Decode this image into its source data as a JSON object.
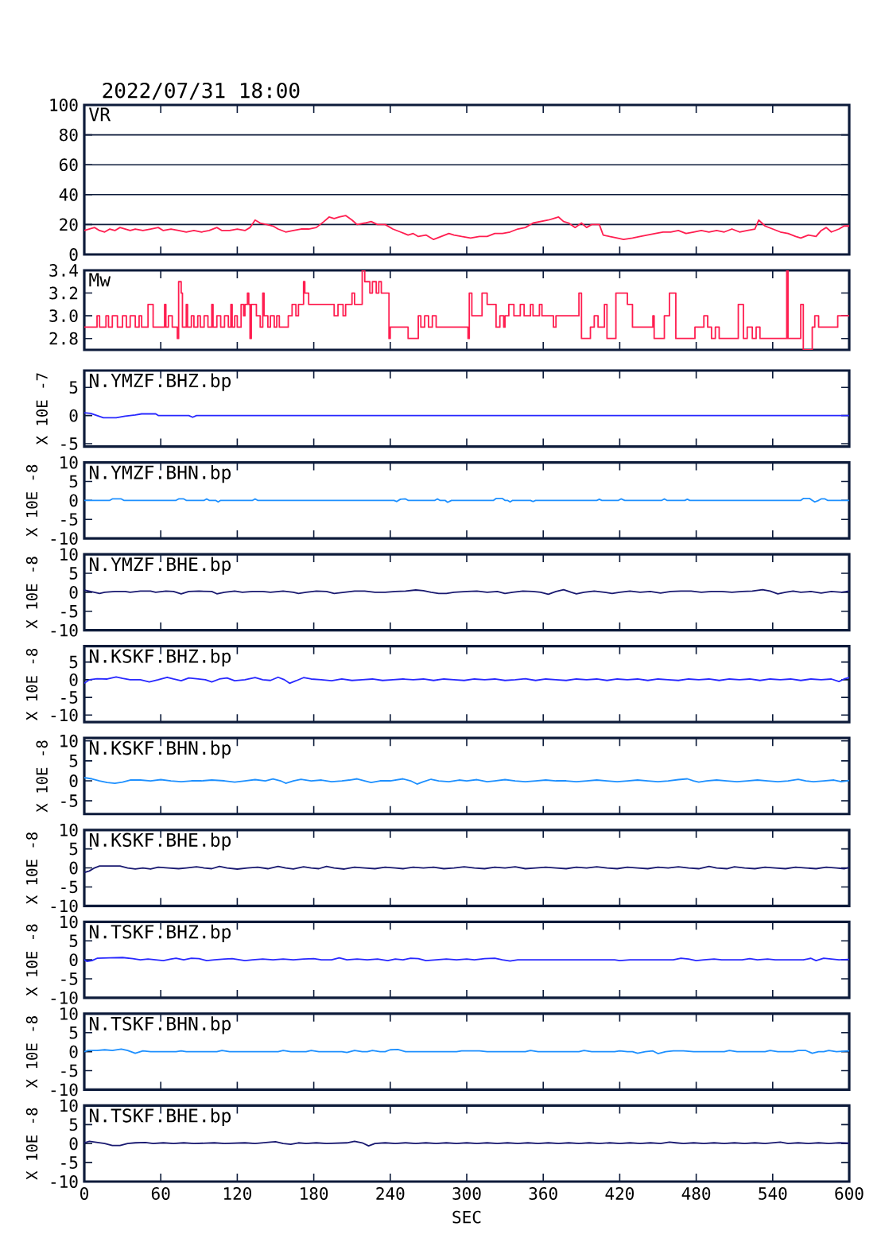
{
  "chart_data": [
    {
      "type": "line",
      "title": "VR",
      "annotations": [
        "2022/07/31 18:00"
      ],
      "color": "#ff1e50",
      "xlim": [
        0,
        600
      ],
      "xticks": [
        0,
        60,
        120,
        180,
        240,
        300,
        360,
        420,
        480,
        540,
        600
      ],
      "ylim": [
        0,
        100
      ],
      "yticks": [
        0,
        20,
        40,
        60,
        80,
        100
      ],
      "grid": "y",
      "tick_labels": "y",
      "x": [
        0,
        4,
        8,
        12,
        16,
        20,
        24,
        28,
        32,
        36,
        40,
        46,
        52,
        58,
        62,
        68,
        74,
        80,
        86,
        92,
        98,
        104,
        108,
        114,
        120,
        126,
        130,
        134,
        138,
        143,
        148,
        152,
        158,
        164,
        170,
        176,
        182,
        188,
        192,
        196,
        200,
        205,
        210,
        214,
        220,
        225,
        230,
        236,
        242,
        248,
        254,
        258,
        262,
        268,
        274,
        280,
        286,
        290,
        296,
        303,
        310,
        316,
        322,
        328,
        334,
        340,
        346,
        352,
        358,
        364,
        368,
        372,
        376,
        380,
        385,
        390,
        394,
        398,
        404,
        407,
        412,
        418,
        423,
        430,
        436,
        442,
        448,
        454,
        460,
        466,
        472,
        478,
        484,
        490,
        496,
        502,
        508,
        514,
        520,
        526,
        529,
        534,
        540,
        546,
        552,
        558,
        562,
        568,
        574,
        578,
        582,
        586,
        592,
        596,
        600
      ],
      "values": [
        16,
        17,
        18,
        16,
        15,
        17,
        16,
        18,
        17,
        16,
        17,
        16,
        17,
        18,
        16,
        17,
        16,
        15,
        16,
        15,
        16,
        18,
        16,
        16,
        17,
        16,
        18,
        23,
        21,
        20,
        19,
        17,
        15,
        16,
        17,
        17,
        18,
        22,
        25,
        24,
        25,
        26,
        23,
        20,
        21,
        22,
        20,
        20,
        17,
        15,
        13,
        14,
        12,
        13,
        10,
        12,
        14,
        13,
        12,
        11,
        12,
        12,
        14,
        14,
        15,
        17,
        18,
        21,
        22,
        23,
        24,
        25,
        22,
        21,
        18,
        21,
        18,
        20,
        20,
        13,
        12,
        11,
        10,
        11,
        12,
        13,
        14,
        15,
        15,
        16,
        14,
        15,
        16,
        15,
        16,
        15,
        17,
        15,
        16,
        17,
        23,
        19,
        17,
        15,
        14,
        12,
        11,
        13,
        12,
        16,
        18,
        15,
        17,
        19,
        19
      ]
    },
    {
      "type": "step",
      "title": "Mw",
      "color": "#ff1e50",
      "xlim": [
        0,
        600
      ],
      "xticks": [
        0,
        60,
        120,
        180,
        240,
        300,
        360,
        420,
        480,
        540,
        600
      ],
      "ylim": [
        2.7,
        3.4
      ],
      "yticks": [
        2.8,
        {
          "value": 3,
          "label": "3.0"
        },
        3.2,
        3.4
      ],
      "tick_labels": "y",
      "x": [
        0,
        10,
        12,
        17,
        19,
        22,
        26,
        30,
        33,
        36,
        40,
        43,
        45,
        50,
        54,
        63,
        64,
        66,
        69,
        73,
        74,
        76,
        77,
        80,
        81,
        84,
        86,
        89,
        91,
        94,
        97,
        100,
        101,
        104,
        107,
        110,
        113,
        115,
        116,
        118,
        120,
        123,
        125,
        126,
        128,
        129,
        130,
        131,
        135,
        138,
        140,
        141,
        144,
        146,
        149,
        151,
        153,
        160,
        163,
        166,
        168,
        172,
        173,
        176,
        196,
        199,
        203,
        205,
        210,
        212,
        218,
        220,
        224,
        226,
        229,
        231,
        233,
        239,
        240,
        254,
        262,
        264,
        267,
        270,
        273,
        276,
        301,
        302,
        304,
        312,
        316,
        323,
        326,
        329,
        330,
        333,
        337,
        342,
        345,
        350,
        352,
        357,
        359,
        368,
        370,
        388,
        390,
        397,
        400,
        403,
        408,
        410,
        417,
        426,
        430,
        446,
        447,
        455,
        459,
        464,
        479,
        486,
        489,
        492,
        495,
        498,
        513,
        517,
        520,
        524,
        527,
        530,
        551,
        552,
        562,
        564,
        571,
        573,
        576,
        591,
        600
      ],
      "values": [
        2.9,
        3.0,
        2.9,
        3.0,
        2.9,
        3.0,
        2.9,
        3.0,
        2.9,
        3.0,
        2.9,
        3.0,
        2.9,
        3.1,
        2.9,
        3.1,
        2.9,
        3.0,
        2.9,
        2.8,
        3.3,
        3.2,
        2.9,
        3.1,
        2.9,
        3.0,
        2.9,
        3.0,
        2.9,
        3.0,
        2.9,
        3.1,
        2.9,
        3.0,
        2.9,
        3.0,
        2.9,
        3.1,
        2.9,
        3.0,
        2.9,
        3.1,
        3.0,
        3.1,
        3.2,
        3.1,
        2.8,
        3.1,
        3.0,
        2.9,
        3.2,
        3.0,
        2.9,
        3.0,
        2.9,
        3.0,
        2.9,
        3.0,
        3.1,
        3.0,
        3.1,
        3.3,
        3.2,
        3.1,
        3.0,
        3.1,
        3.0,
        3.1,
        3.2,
        3.1,
        3.4,
        3.3,
        3.2,
        3.3,
        3.2,
        3.3,
        3.2,
        2.8,
        2.9,
        2.8,
        3.0,
        2.9,
        3.0,
        2.9,
        3.0,
        2.9,
        2.8,
        3.2,
        3.0,
        3.2,
        3.1,
        2.9,
        3.0,
        2.9,
        3.0,
        3.1,
        3.0,
        3.1,
        3.0,
        3.1,
        3.0,
        3.1,
        3.0,
        2.9,
        3.0,
        3.2,
        2.8,
        2.9,
        3.0,
        2.9,
        3.1,
        2.8,
        3.2,
        3.1,
        2.9,
        3.0,
        2.8,
        3.0,
        3.2,
        2.8,
        2.9,
        3.0,
        2.9,
        2.8,
        2.9,
        2.8,
        3.1,
        2.8,
        2.9,
        2.8,
        2.9,
        2.8,
        3.4,
        2.8,
        3.1,
        2.7,
        2.9,
        3.0,
        2.9,
        3.0,
        3.0
      ]
    },
    {
      "type": "line",
      "title": "N.YMZF.BHZ.bp",
      "ylabel": "X 10E -7",
      "color": "#2828ff",
      "xlim": [
        0,
        600
      ],
      "xticks": [
        0,
        60,
        120,
        180,
        240,
        300,
        360,
        420,
        480,
        540,
        600
      ],
      "ylim": [
        -5.5,
        8
      ],
      "yticks": [
        -5,
        0,
        5
      ],
      "tick_labels": "y",
      "x": [
        0,
        5,
        10,
        15,
        25,
        32,
        40,
        45,
        56,
        58,
        82,
        85,
        88,
        600
      ],
      "values": [
        0.5,
        0.4,
        0,
        -0.4,
        -0.4,
        -0.1,
        0.1,
        0.3,
        0.3,
        0,
        0,
        -0.3,
        0,
        0
      ]
    },
    {
      "type": "line",
      "title": "N.YMZF.BHN.bp",
      "ylabel": "X 10E -8",
      "color": "#1e90ff",
      "xlim": [
        0,
        600
      ],
      "xticks": [
        0,
        60,
        120,
        180,
        240,
        300,
        360,
        420,
        480,
        540,
        600
      ],
      "ylim": [
        -10,
        10
      ],
      "yticks": [
        -10,
        -5,
        0,
        5,
        10
      ],
      "tick_labels": "y",
      "x": [
        0,
        20,
        22,
        29,
        31,
        72,
        74,
        78,
        80,
        94,
        96,
        98,
        103,
        105,
        107,
        132,
        134,
        136,
        243,
        245,
        248,
        252,
        254,
        275,
        277,
        279,
        283,
        285,
        288,
        321,
        323,
        328,
        330,
        332,
        334,
        336,
        350,
        352,
        354,
        402,
        404,
        406,
        419,
        421,
        424,
        453,
        455,
        457,
        471,
        473,
        475,
        562,
        564,
        569,
        571,
        573,
        576,
        578,
        581,
        583,
        600
      ],
      "values": [
        0,
        0,
        0.4,
        0.4,
        0,
        0,
        0.4,
        0.4,
        0,
        0,
        0.4,
        0,
        0,
        -0.4,
        0,
        0,
        0.4,
        0,
        0,
        -0.3,
        0.3,
        0.4,
        0,
        0,
        0.4,
        0,
        0,
        -0.5,
        0,
        0,
        0.5,
        0.5,
        0,
        0,
        -0.4,
        0,
        0,
        -0.3,
        0,
        0,
        0.3,
        0,
        0,
        0.4,
        0,
        0,
        0.4,
        0,
        0,
        0.3,
        0,
        0,
        0.5,
        0.5,
        0,
        -0.4,
        0,
        0.4,
        0.4,
        0,
        0
      ]
    },
    {
      "type": "line",
      "title": "N.YMZF.BHE.bp",
      "ylabel": "X 10E -8",
      "color": "#191970",
      "xlim": [
        0,
        600
      ],
      "xticks": [
        0,
        60,
        120,
        180,
        240,
        300,
        360,
        420,
        480,
        540,
        600
      ],
      "ylim": [
        -10,
        10
      ],
      "yticks": [
        -10,
        -5,
        0,
        5,
        10
      ],
      "tick_labels": "y",
      "x": [
        0,
        4,
        8,
        12,
        16,
        24,
        32,
        36,
        44,
        52,
        56,
        64,
        70,
        76,
        82,
        90,
        100,
        104,
        110,
        118,
        124,
        132,
        140,
        146,
        156,
        164,
        168,
        174,
        182,
        190,
        196,
        204,
        212,
        220,
        228,
        236,
        244,
        252,
        260,
        266,
        272,
        278,
        284,
        290,
        300,
        308,
        316,
        324,
        330,
        336,
        344,
        352,
        358,
        364,
        370,
        376,
        382,
        386,
        392,
        400,
        408,
        414,
        420,
        428,
        436,
        444,
        452,
        460,
        468,
        476,
        484,
        492,
        500,
        508,
        516,
        524,
        532,
        538,
        544,
        550,
        556,
        562,
        570,
        578,
        586,
        594,
        600
      ],
      "values": [
        0.6,
        0.3,
        0,
        -0.3,
        0,
        0.2,
        0.2,
        0,
        0.3,
        0.3,
        0,
        0.3,
        0.2,
        -0.4,
        0.2,
        0.3,
        0.2,
        -0.4,
        0,
        0.3,
        0,
        0.2,
        0.2,
        0,
        0.3,
        0,
        -0.3,
        0,
        0.3,
        0.2,
        -0.3,
        0,
        0.3,
        0.3,
        0,
        0,
        0.2,
        0.3,
        0.6,
        0.4,
        0,
        -0.3,
        -0.3,
        0,
        0.2,
        0.3,
        0,
        0.2,
        -0.3,
        0,
        0.3,
        0.2,
        0,
        -0.5,
        0.2,
        0.7,
        0,
        -0.4,
        0,
        0.3,
        0,
        -0.3,
        0,
        0.3,
        0,
        0.2,
        -0.2,
        0.2,
        0.3,
        0.3,
        0,
        0.2,
        0.2,
        0,
        0.2,
        0.3,
        0.7,
        0.3,
        -0.4,
        0,
        0.3,
        0,
        0.2,
        -0.2,
        0.2,
        0,
        0.3
      ]
    },
    {
      "type": "line",
      "title": "N.KSKF.BHZ.bp",
      "ylabel": "X 10E -8",
      "color": "#2828ff",
      "xlim": [
        0,
        600
      ],
      "xticks": [
        0,
        60,
        120,
        180,
        240,
        300,
        360,
        420,
        480,
        540,
        600
      ],
      "ylim": [
        -12,
        9.5
      ],
      "yticks": [
        -10,
        -5,
        0,
        5
      ],
      "tick_labels": "y",
      "x": [
        0,
        4,
        10,
        18,
        25,
        30,
        36,
        44,
        51,
        58,
        65,
        70,
        76,
        82,
        88,
        95,
        100,
        106,
        112,
        118,
        126,
        134,
        140,
        146,
        152,
        157,
        161,
        166,
        172,
        178,
        186,
        194,
        202,
        210,
        218,
        226,
        234,
        242,
        250,
        258,
        266,
        274,
        282,
        290,
        298,
        306,
        314,
        322,
        330,
        338,
        346,
        354,
        362,
        370,
        378,
        386,
        394,
        402,
        410,
        418,
        426,
        434,
        442,
        450,
        458,
        466,
        474,
        482,
        490,
        498,
        506,
        514,
        522,
        530,
        538,
        546,
        554,
        562,
        570,
        578,
        586,
        592,
        596,
        600
      ],
      "values": [
        -1,
        0,
        0.3,
        0.2,
        0.8,
        0.4,
        0,
        0,
        -0.6,
        0,
        0.7,
        0.2,
        -0.3,
        0.5,
        0.3,
        0,
        -0.6,
        0.2,
        0.5,
        -0.3,
        0,
        0.6,
        0,
        -0.2,
        0.7,
        0,
        -1.0,
        -0.3,
        0.6,
        0.2,
        0,
        -0.3,
        0.2,
        -0.2,
        0,
        0.2,
        -0.2,
        0,
        0.2,
        0,
        0.2,
        -0.2,
        0.2,
        0,
        -0.2,
        0.2,
        0,
        0.2,
        -0.2,
        0,
        0.3,
        -0.2,
        0.2,
        0,
        -0.2,
        0.2,
        0,
        0.2,
        -0.2,
        0.2,
        0,
        0.2,
        -0.2,
        0.2,
        0,
        -0.2,
        0.2,
        0,
        0.2,
        -0.2,
        0.2,
        0,
        0.2,
        -0.2,
        0.2,
        0,
        0.2,
        -0.2,
        0.2,
        0,
        0.2,
        -0.5,
        0.2,
        0.6
      ]
    },
    {
      "type": "line",
      "title": "N.KSKF.BHN.bp",
      "ylabel": "X 10E -8",
      "color": "#1e90ff",
      "xlim": [
        0,
        600
      ],
      "xticks": [
        0,
        60,
        120,
        180,
        240,
        300,
        360,
        420,
        480,
        540,
        600
      ],
      "ylim": [
        -8.3,
        10.7
      ],
      "yticks": [
        -5,
        0,
        5,
        10
      ],
      "tick_labels": "y",
      "x": [
        0,
        6,
        12,
        18,
        24,
        30,
        36,
        44,
        52,
        60,
        68,
        76,
        84,
        92,
        100,
        110,
        118,
        126,
        134,
        142,
        148,
        154,
        158,
        164,
        170,
        178,
        186,
        194,
        202,
        208,
        214,
        220,
        225,
        232,
        240,
        246,
        250,
        256,
        261,
        266,
        272,
        278,
        286,
        294,
        300,
        308,
        316,
        322,
        330,
        338,
        346,
        354,
        362,
        370,
        378,
        386,
        394,
        402,
        410,
        418,
        426,
        434,
        442,
        450,
        458,
        466,
        473,
        478,
        482,
        488,
        496,
        504,
        512,
        520,
        528,
        536,
        544,
        552,
        560,
        566,
        572,
        580,
        588,
        594,
        600
      ],
      "values": [
        0.8,
        0.5,
        0,
        -0.4,
        -0.6,
        -0.3,
        0.2,
        0.2,
        0,
        0.3,
        0,
        -0.2,
        0,
        0,
        0.2,
        0,
        -0.3,
        0,
        0.3,
        0,
        0.5,
        0,
        -0.6,
        0,
        0.4,
        0,
        0.2,
        -0.2,
        0,
        0.2,
        0.5,
        0,
        -0.4,
        0,
        0,
        0.3,
        0.5,
        0,
        -0.8,
        -0.2,
        0.4,
        0,
        -0.2,
        0.2,
        0,
        0.3,
        -0.2,
        0,
        0.3,
        0,
        -0.2,
        0,
        0.2,
        0,
        0,
        -0.2,
        0,
        0.2,
        0,
        -0.2,
        0,
        0.2,
        0,
        -0.2,
        0,
        0.3,
        0.5,
        0,
        -0.3,
        0,
        0.2,
        0,
        -0.2,
        0,
        0.2,
        0,
        -0.2,
        0,
        0.4,
        0,
        -0.2,
        0,
        0.2,
        -0.2,
        0.1
      ]
    },
    {
      "type": "line",
      "title": "N.KSKF.BHE.bp",
      "ylabel": "X 10E -8",
      "color": "#191970",
      "xlim": [
        0,
        600
      ],
      "xticks": [
        0,
        60,
        120,
        180,
        240,
        300,
        360,
        420,
        480,
        540,
        600
      ],
      "ylim": [
        -10,
        10
      ],
      "yticks": [
        -10,
        -5,
        0,
        5,
        10
      ],
      "tick_labels": "y",
      "x": [
        0,
        4,
        8,
        12,
        28,
        34,
        40,
        46,
        52,
        58,
        66,
        74,
        80,
        88,
        94,
        100,
        106,
        112,
        120,
        128,
        136,
        144,
        152,
        158,
        164,
        172,
        178,
        184,
        190,
        196,
        204,
        212,
        220,
        228,
        236,
        244,
        250,
        258,
        266,
        274,
        282,
        290,
        298,
        306,
        314,
        322,
        330,
        338,
        346,
        354,
        362,
        370,
        378,
        386,
        394,
        402,
        410,
        418,
        426,
        434,
        442,
        450,
        458,
        466,
        474,
        482,
        490,
        496,
        504,
        510,
        518,
        526,
        534,
        542,
        550,
        558,
        566,
        574,
        582,
        590,
        596,
        600
      ],
      "values": [
        -1.2,
        -0.8,
        0,
        0.5,
        0.5,
        0,
        -0.3,
        0,
        -0.3,
        0.2,
        0,
        -0.2,
        0,
        0.3,
        0,
        -0.2,
        0.4,
        0,
        -0.3,
        0,
        0.2,
        -0.2,
        0.4,
        0,
        -0.3,
        0.3,
        0,
        -0.2,
        0.4,
        0,
        -0.3,
        0.2,
        0,
        -0.2,
        0.2,
        0,
        -0.2,
        0.2,
        0,
        0.2,
        -0.2,
        0,
        0.3,
        0,
        -0.2,
        0.2,
        0,
        0.3,
        -0.2,
        0,
        0.2,
        0,
        -0.2,
        0.2,
        0,
        0.3,
        0,
        -0.2,
        0.2,
        0,
        -0.2,
        0.2,
        0,
        0.3,
        0,
        -0.2,
        0.4,
        0,
        -0.2,
        0.3,
        0,
        -0.2,
        0.2,
        0,
        -0.2,
        0.2,
        0,
        -0.2,
        0.2,
        0,
        -0.2,
        0.1
      ]
    },
    {
      "type": "line",
      "title": "N.TSKF.BHZ.bp",
      "ylabel": "X 10E -8",
      "color": "#2828ff",
      "xlim": [
        0,
        600
      ],
      "xticks": [
        0,
        60,
        120,
        180,
        240,
        300,
        360,
        420,
        480,
        540,
        600
      ],
      "ylim": [
        -10,
        10
      ],
      "yticks": [
        -10,
        -5,
        0,
        5,
        10
      ],
      "tick_labels": "y",
      "x": [
        0,
        2,
        6,
        10,
        20,
        30,
        38,
        44,
        50,
        56,
        62,
        68,
        72,
        78,
        84,
        90,
        96,
        102,
        110,
        116,
        122,
        126,
        132,
        140,
        148,
        156,
        164,
        172,
        180,
        186,
        194,
        200,
        206,
        214,
        222,
        230,
        238,
        244,
        250,
        256,
        262,
        268,
        276,
        284,
        292,
        300,
        306,
        314,
        322,
        328,
        334,
        340,
        416,
        420,
        428,
        462,
        468,
        474,
        480,
        486,
        494,
        500,
        516,
        522,
        528,
        536,
        542,
        564,
        570,
        574,
        580,
        586,
        592,
        600
      ],
      "values": [
        0,
        -0.4,
        -0.2,
        0.4,
        0.5,
        0.6,
        0.3,
        0,
        0.2,
        0,
        -0.2,
        0.2,
        0.4,
        0,
        0.4,
        0.3,
        -0.2,
        0,
        0.2,
        0.3,
        0,
        -0.2,
        0,
        0.2,
        0,
        0.2,
        0,
        0.2,
        0.3,
        0,
        0,
        0.5,
        0,
        0.2,
        0,
        0.2,
        -0.2,
        0.2,
        0,
        0.4,
        0.3,
        -0.2,
        0,
        0.2,
        0,
        0.2,
        0,
        0.3,
        0.4,
        0,
        -0.3,
        0,
        0,
        -0.2,
        0,
        0,
        0.4,
        0.2,
        -0.2,
        0,
        0.2,
        0,
        0,
        0.3,
        0,
        0.2,
        0,
        0,
        0.4,
        -0.2,
        0.4,
        0.2,
        0,
        0.1
      ]
    },
    {
      "type": "line",
      "title": "N.TSKF.BHN.bp",
      "ylabel": "X 10E -8",
      "color": "#1e90ff",
      "xlim": [
        0,
        600
      ],
      "xticks": [
        0,
        60,
        120,
        180,
        240,
        300,
        360,
        420,
        480,
        540,
        600
      ],
      "ylim": [
        -10,
        10
      ],
      "yticks": [
        -10,
        -5,
        0,
        5,
        10
      ],
      "tick_labels": "y",
      "x": [
        0,
        3,
        10,
        16,
        22,
        29,
        34,
        40,
        46,
        52,
        72,
        76,
        80,
        104,
        108,
        114,
        152,
        156,
        162,
        174,
        178,
        184,
        202,
        206,
        212,
        218,
        222,
        226,
        232,
        236,
        240,
        246,
        252,
        292,
        296,
        310,
        316,
        346,
        350,
        356,
        388,
        392,
        398,
        416,
        420,
        426,
        430,
        434,
        440,
        446,
        450,
        456,
        462,
        470,
        478,
        502,
        506,
        512,
        534,
        538,
        544,
        556,
        560,
        566,
        571,
        576,
        580,
        584,
        590,
        600
      ],
      "values": [
        0,
        0.3,
        0.3,
        0.5,
        0.3,
        0.7,
        0.3,
        -0.4,
        0.2,
        0,
        0,
        0.2,
        0,
        0,
        0.3,
        0,
        0,
        0.3,
        0,
        0,
        0.3,
        0,
        0,
        -0.2,
        0.3,
        0,
        0,
        0.3,
        0,
        0,
        0.5,
        0.6,
        0,
        0,
        0.2,
        0.2,
        0,
        0,
        0.3,
        0,
        0,
        0.3,
        0,
        0,
        0.2,
        0,
        0,
        -0.4,
        0,
        0.2,
        -0.5,
        0,
        0.2,
        0.2,
        0,
        0,
        0.3,
        0,
        0,
        0.3,
        0,
        0,
        0.3,
        0.3,
        -0.4,
        0,
        0,
        0.3,
        0,
        0.2
      ]
    },
    {
      "type": "line",
      "title": "N.TSKF.BHE.bp",
      "ylabel": "X 10E -8",
      "xlabel": "SEC",
      "color": "#191970",
      "xlim": [
        0,
        600
      ],
      "xticks": [
        0,
        60,
        120,
        180,
        240,
        300,
        360,
        420,
        480,
        540,
        600
      ],
      "ylim": [
        -10,
        10
      ],
      "yticks": [
        -10,
        -5,
        0,
        5,
        10
      ],
      "x": [
        0,
        4,
        10,
        16,
        22,
        28,
        34,
        40,
        48,
        54,
        62,
        70,
        78,
        86,
        102,
        110,
        126,
        134,
        146,
        150,
        156,
        162,
        168,
        174,
        182,
        190,
        206,
        212,
        218,
        223,
        228,
        236,
        244,
        252,
        260,
        268,
        276,
        284,
        292,
        300,
        308,
        316,
        324,
        332,
        340,
        348,
        356,
        364,
        372,
        380,
        388,
        396,
        404,
        412,
        420,
        428,
        436,
        444,
        452,
        459,
        464,
        470,
        478,
        486,
        494,
        502,
        510,
        518,
        526,
        534,
        540,
        546,
        552,
        560,
        568,
        576,
        584,
        592,
        600
      ],
      "values": [
        0.2,
        0.6,
        0.3,
        0,
        -0.5,
        -0.5,
        0,
        0.2,
        0.3,
        0,
        0.2,
        0,
        0.2,
        0,
        0.2,
        0,
        0.2,
        0,
        0.4,
        0.5,
        0,
        -0.2,
        0.2,
        0,
        0.2,
        0,
        0.2,
        0.6,
        0.2,
        -0.6,
        0,
        0.2,
        0,
        0.2,
        0,
        0.2,
        0,
        0.2,
        0,
        0.2,
        0,
        0.2,
        0,
        0.2,
        0,
        0.2,
        0,
        0.2,
        0,
        0.2,
        0,
        0.2,
        0,
        0.2,
        0,
        0.2,
        0,
        0.2,
        0,
        0.4,
        0.2,
        0,
        0.2,
        0,
        0.2,
        0,
        0.2,
        0,
        0.2,
        0,
        0.2,
        0.4,
        0,
        0.2,
        0,
        0.2,
        0,
        0.2,
        0.1
      ]
    }
  ]
}
